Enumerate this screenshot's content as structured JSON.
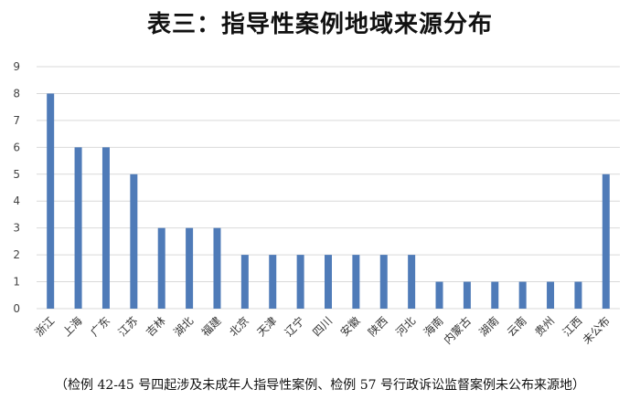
{
  "chart_data": {
    "type": "bar",
    "title": "表三：指导性案例地域来源分布",
    "caption": "（检例 42-45 号四起涉及未成年人指导性案例、检例 57 号行政诉讼监督案例未公布来源地）",
    "categories": [
      "浙江",
      "上海",
      "广东",
      "江苏",
      "吉林",
      "湖北",
      "福建",
      "北京",
      "天津",
      "辽宁",
      "四川",
      "安徽",
      "陕西",
      "河北",
      "海南",
      "内蒙古",
      "湖南",
      "云南",
      "贵州",
      "江西",
      "未公布"
    ],
    "values": [
      8,
      6,
      6,
      5,
      3,
      3,
      3,
      2,
      2,
      2,
      2,
      2,
      2,
      2,
      1,
      1,
      1,
      1,
      1,
      1,
      5
    ],
    "ylim": [
      0,
      9
    ],
    "yticks": [
      0,
      1,
      2,
      3,
      4,
      5,
      6,
      7,
      8,
      9
    ],
    "grid": true,
    "bar_color": "#4F7BB8",
    "grid_color": "#D9D9D9"
  }
}
